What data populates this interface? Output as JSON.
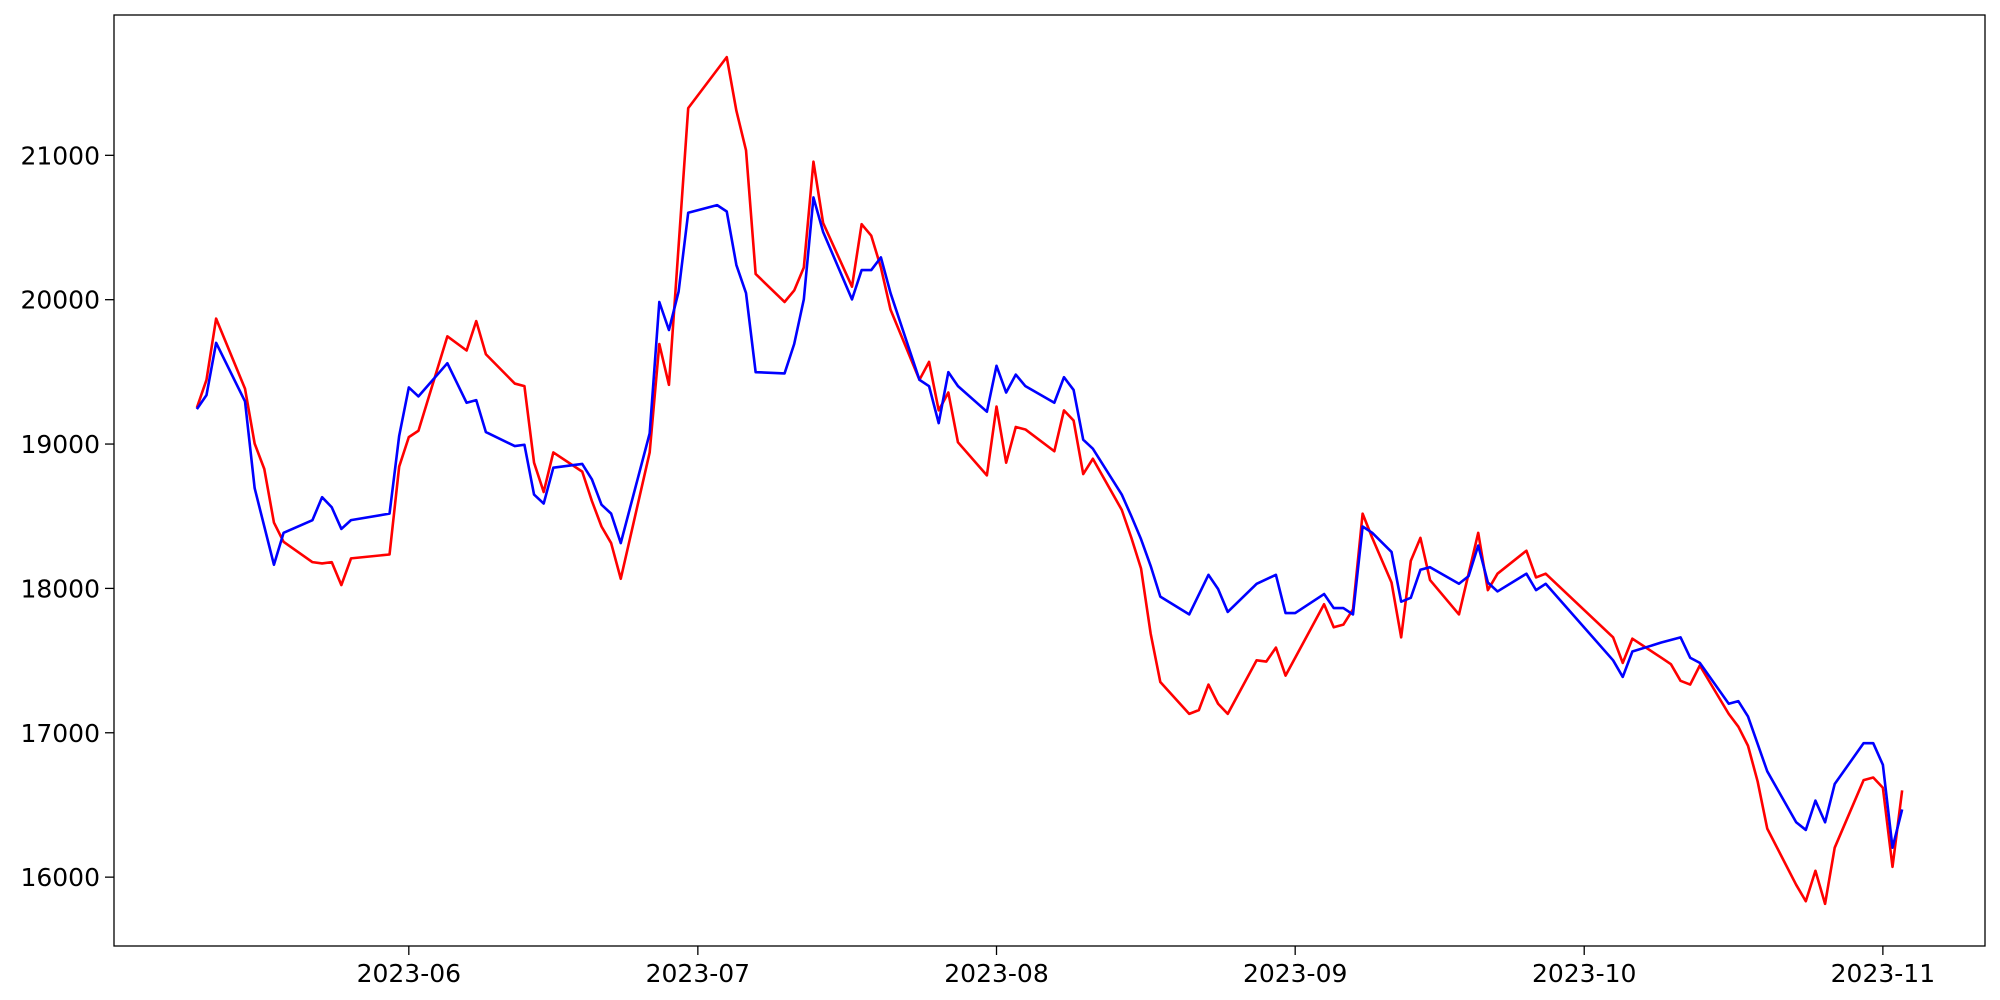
{
  "chart_data": {
    "type": "line",
    "xlim": [
      19478.4,
      19672.6
    ],
    "xticks": [
      {
        "value": 19509,
        "label": "2023-06"
      },
      {
        "value": 19539,
        "label": "2023-07"
      },
      {
        "value": 19570,
        "label": "2023-08"
      },
      {
        "value": 19601,
        "label": "2023-09"
      },
      {
        "value": 19631,
        "label": "2023-10"
      },
      {
        "value": 19662,
        "label": "2023-11"
      }
    ],
    "ylim": [
      15523,
      21972
    ],
    "yticks": [
      16000,
      17000,
      18000,
      19000,
      20000,
      21000
    ],
    "series": [
      {
        "color": "#ff0000",
        "x": [
          19487,
          19488,
          19489,
          19492,
          19493,
          19494,
          19495,
          19496,
          19499,
          19500,
          19501,
          19502,
          19503,
          19507,
          19508,
          19509,
          19510,
          19513,
          19515,
          19516,
          19517,
          19520,
          19521,
          19522,
          19523,
          19524,
          19527,
          19528,
          19529,
          19530,
          19531,
          19534,
          19535,
          19536,
          19538,
          19541,
          19542,
          19543,
          19544,
          19545,
          19548,
          19549,
          19550,
          19551,
          19552,
          19555,
          19556,
          19557,
          19558,
          19559,
          19562,
          19563,
          19564,
          19565,
          19566,
          19569,
          19570,
          19571,
          19572,
          19573,
          19576,
          19577,
          19578,
          19579,
          19580,
          19583,
          19584,
          19585,
          19586,
          19587,
          19590,
          19591,
          19592,
          19593,
          19594,
          19597,
          19598,
          19599,
          19600,
          19604,
          19605,
          19606,
          19607,
          19608,
          19609,
          19611,
          19612,
          19613,
          19614,
          19615,
          19618,
          19619,
          19620,
          19621,
          19622,
          19625,
          19626,
          19627,
          19634,
          19635,
          19636,
          19639,
          19640,
          19641,
          19642,
          19643,
          19646,
          19647,
          19648,
          19649,
          19650,
          19653,
          19654,
          19655,
          19656,
          19657,
          19660,
          19661,
          19662,
          19663,
          19664
        ],
        "values": [
          19251,
          19445,
          19869,
          19383,
          19003,
          18827,
          18456,
          18323,
          18182,
          18173,
          18182,
          18023,
          18208,
          18235,
          18844,
          19048,
          19092,
          19746,
          19648,
          19852,
          19622,
          19419,
          19401,
          18871,
          18668,
          18942,
          18809,
          18606,
          18429,
          18314,
          18067,
          18942,
          19693,
          19410,
          21327,
          21592,
          21680,
          21309,
          21035,
          20178,
          19984,
          20064,
          20223,
          20956,
          20532,
          20090,
          20523,
          20443,
          20223,
          19931,
          19445,
          19569,
          19233,
          19357,
          19012,
          18783,
          19260,
          18871,
          19118,
          19101,
          18950,
          19233,
          19163,
          18792,
          18898,
          18544,
          18350,
          18138,
          17687,
          17352,
          17131,
          17157,
          17334,
          17201,
          17131,
          17502,
          17493,
          17590,
          17396,
          17890,
          17731,
          17749,
          17855,
          18518,
          18350,
          18041,
          17661,
          18191,
          18350,
          18058,
          17820,
          18102,
          18385,
          17988,
          18102,
          18261,
          18076,
          18102,
          17661,
          17484,
          17652,
          17520,
          17475,
          17360,
          17334,
          17466,
          17131,
          17042,
          16910,
          16663,
          16336,
          15947,
          15833,
          16044,
          15815,
          16204,
          16672,
          16690,
          16619,
          16071,
          16601
        ]
      },
      {
        "color": "#0000ff",
        "x": [
          19487,
          19488,
          19489,
          19492,
          19493,
          19495,
          19496,
          19499,
          19500,
          19501,
          19502,
          19503,
          19507,
          19508,
          19509,
          19510,
          19513,
          19515,
          19516,
          19517,
          19520,
          19521,
          19522,
          19523,
          19524,
          19527,
          19528,
          19529,
          19530,
          19531,
          19534,
          19535,
          19536,
          19537,
          19538,
          19541,
          19542,
          19543,
          19544,
          19545,
          19548,
          19549,
          19550,
          19551,
          19552,
          19555,
          19556,
          19557,
          19558,
          19559,
          19562,
          19563,
          19564,
          19565,
          19566,
          19569,
          19570,
          19571,
          19572,
          19573,
          19576,
          19577,
          19578,
          19579,
          19580,
          19583,
          19584,
          19585,
          19586,
          19587,
          19590,
          19592,
          19593,
          19594,
          19597,
          19599,
          19600,
          19601,
          19604,
          19605,
          19606,
          19607,
          19608,
          19609,
          19611,
          19612,
          19613,
          19614,
          19615,
          19618,
          19619,
          19620,
          19621,
          19622,
          19625,
          19626,
          19627,
          19634,
          19635,
          19636,
          19639,
          19641,
          19642,
          19643,
          19646,
          19647,
          19648,
          19650,
          19653,
          19654,
          19655,
          19656,
          19657,
          19660,
          19661,
          19662,
          19663,
          19664
        ],
        "values": [
          19242,
          19339,
          19701,
          19295,
          18694,
          18164,
          18385,
          18473,
          18632,
          18562,
          18412,
          18473,
          18518,
          19057,
          19392,
          19330,
          19560,
          19286,
          19304,
          19083,
          18986,
          18995,
          18650,
          18588,
          18836,
          18862,
          18756,
          18580,
          18518,
          18314,
          19074,
          19984,
          19790,
          20055,
          20602,
          20655,
          20611,
          20240,
          20046,
          19498,
          19489,
          19693,
          20002,
          20708,
          20470,
          20002,
          20205,
          20205,
          20293,
          20046,
          19445,
          19401,
          19145,
          19498,
          19401,
          19224,
          19542,
          19357,
          19481,
          19401,
          19286,
          19463,
          19375,
          19030,
          18968,
          18650,
          18500,
          18341,
          18156,
          17943,
          17820,
          18094,
          17996,
          17837,
          18032,
          18094,
          17829,
          17829,
          17961,
          17864,
          17864,
          17820,
          18429,
          18385,
          18253,
          17908,
          17935,
          18129,
          18147,
          18032,
          18085,
          18297,
          18041,
          17979,
          18102,
          17988,
          18032,
          17502,
          17387,
          17563,
          17625,
          17661,
          17520,
          17484,
          17201,
          17219,
          17113,
          16733,
          16380,
          16327,
          16530,
          16380,
          16645,
          16928,
          16928,
          16778,
          16204,
          16469
        ]
      }
    ]
  }
}
